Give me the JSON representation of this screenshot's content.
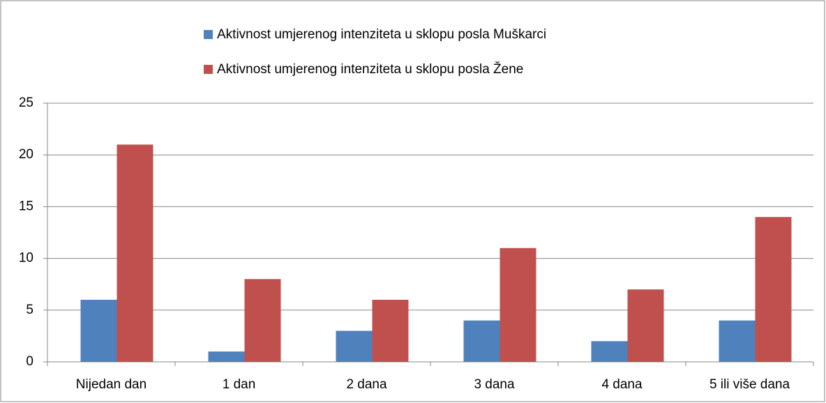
{
  "chart_data": {
    "type": "bar",
    "categories": [
      "Nijedan dan",
      "1 dan",
      "2 dana",
      "3 dana",
      "4 dana",
      "5 ili više dana"
    ],
    "series": [
      {
        "name": "Aktivnost umjerenog intenziteta u sklopu posla Muškarci",
        "color": "#4f81bd",
        "values": [
          6,
          1,
          3,
          4,
          2,
          4
        ]
      },
      {
        "name": "Aktivnost umjerenog intenziteta u sklopu posla Žene",
        "color": "#c0504d",
        "values": [
          21,
          8,
          6,
          11,
          7,
          14
        ]
      }
    ],
    "ylim": [
      0,
      25
    ],
    "yticks": [
      0,
      5,
      10,
      15,
      20,
      25
    ],
    "grid": true,
    "legend": "top"
  }
}
